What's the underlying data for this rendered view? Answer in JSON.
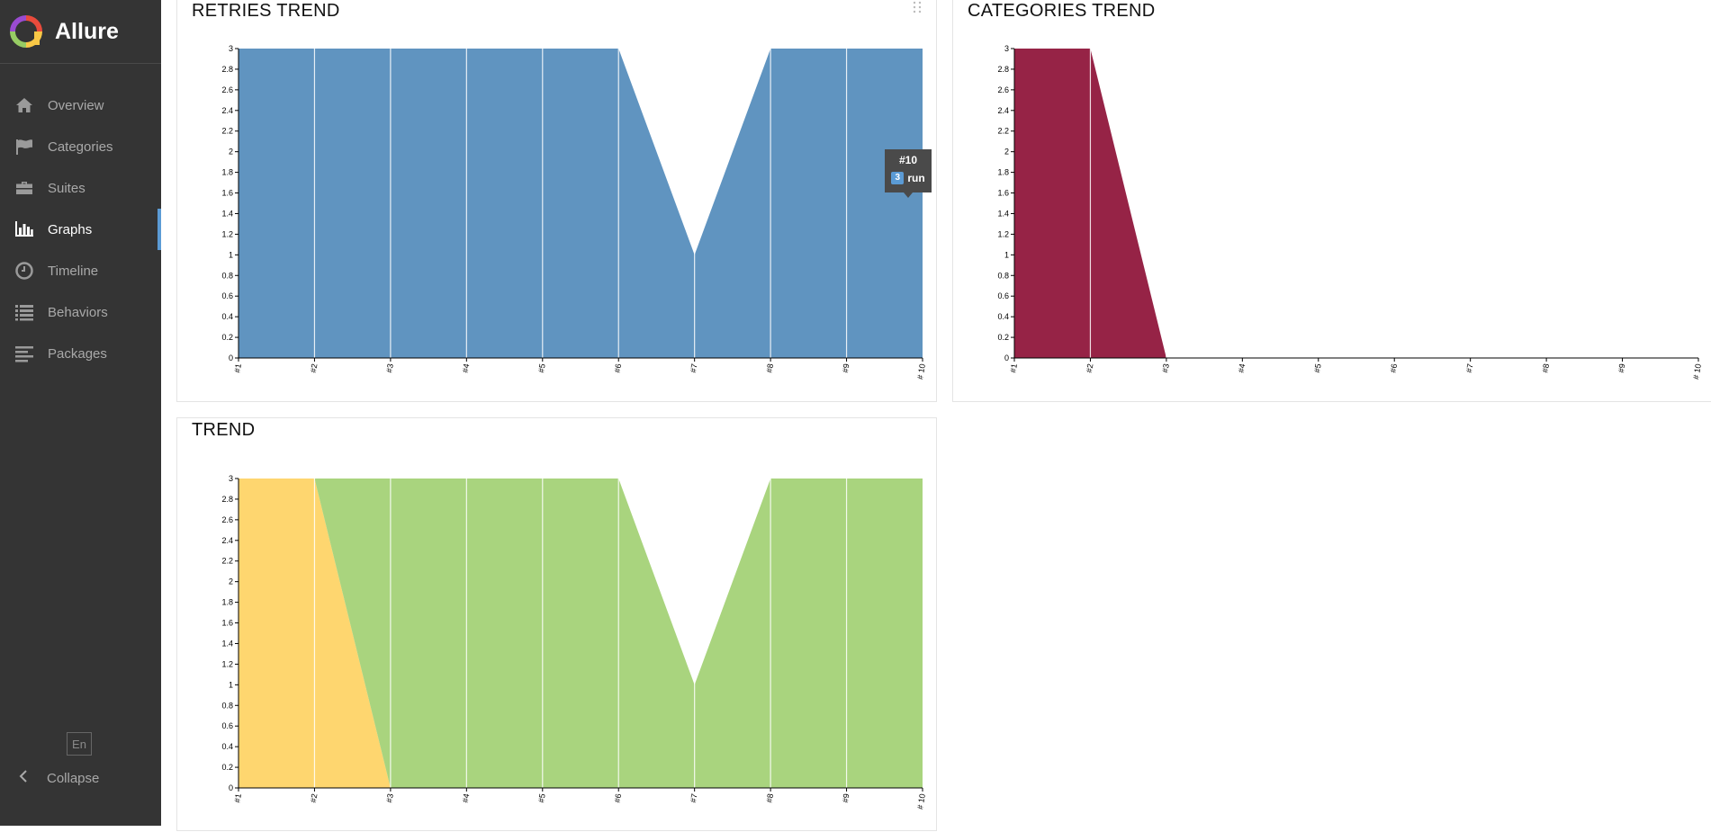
{
  "app": {
    "name": "Allure"
  },
  "sidebar": {
    "items": [
      {
        "label": "Overview",
        "icon": "home-icon",
        "active": false
      },
      {
        "label": "Categories",
        "icon": "flag-icon",
        "active": false
      },
      {
        "label": "Suites",
        "icon": "briefcase-icon",
        "active": false
      },
      {
        "label": "Graphs",
        "icon": "bar-chart-icon",
        "active": true
      },
      {
        "label": "Timeline",
        "icon": "clock-icon",
        "active": false
      },
      {
        "label": "Behaviors",
        "icon": "list-icon",
        "active": false
      },
      {
        "label": "Packages",
        "icon": "align-left-icon",
        "active": false
      }
    ],
    "language": "En",
    "collapse_label": "Collapse"
  },
  "widgets": {
    "retries": {
      "title": "RETRIES TREND"
    },
    "categories": {
      "title": "CATEGORIES TREND"
    },
    "trend": {
      "title": "TREND"
    }
  },
  "tooltip": {
    "title": "#10",
    "count": "3",
    "label": "run"
  },
  "colors": {
    "sidebar_bg": "#343434",
    "accent": "#5b9bd5",
    "retries": "#6094c0",
    "categories": "#962346",
    "broken": "#fed66f",
    "passed": "#a9d47e"
  },
  "chart_data": [
    {
      "id": "retries",
      "type": "area",
      "title": "RETRIES TREND",
      "x": [
        "#1",
        "#2",
        "#3",
        "#4",
        "#5",
        "#6",
        "#7",
        "#8",
        "#9",
        "# 10"
      ],
      "yticks": [
        "0",
        "0.2",
        "0.4",
        "0.6",
        "0.8",
        "1",
        "1.2",
        "1.4",
        "1.6",
        "1.8",
        "2",
        "2.2",
        "2.4",
        "2.6",
        "2.8",
        "3"
      ],
      "ylim": [
        0,
        3
      ],
      "series": [
        {
          "name": "run",
          "color": "#6094c0",
          "values": [
            3,
            3,
            3,
            3,
            3,
            3,
            1,
            3,
            3,
            3
          ]
        }
      ]
    },
    {
      "id": "categories",
      "type": "area",
      "title": "CATEGORIES TREND",
      "x": [
        "#1",
        "#2",
        "#3",
        "#4",
        "#5",
        "#6",
        "#7",
        "#8",
        "#9",
        "# 10"
      ],
      "yticks": [
        "0",
        "0.2",
        "0.4",
        "0.6",
        "0.8",
        "1",
        "1.2",
        "1.4",
        "1.6",
        "1.8",
        "2",
        "2.2",
        "2.4",
        "2.6",
        "2.8",
        "3"
      ],
      "ylim": [
        0,
        3
      ],
      "series": [
        {
          "color": "#962346",
          "values": [
            3,
            3,
            0,
            0,
            0,
            0,
            0,
            0,
            0,
            0
          ]
        }
      ]
    },
    {
      "id": "trend",
      "type": "area",
      "title": "TREND",
      "x": [
        "#1",
        "#2",
        "#3",
        "#4",
        "#5",
        "#6",
        "#7",
        "#8",
        "#9",
        "# 10"
      ],
      "yticks": [
        "0",
        "0.2",
        "0.4",
        "0.6",
        "0.8",
        "1",
        "1.2",
        "1.4",
        "1.6",
        "1.8",
        "2",
        "2.2",
        "2.4",
        "2.6",
        "2.8",
        "3"
      ],
      "ylim": [
        0,
        3
      ],
      "stacked": true,
      "series": [
        {
          "color": "#fed66f",
          "values": [
            3,
            3,
            0,
            0,
            0,
            0,
            0,
            0,
            0,
            0
          ]
        },
        {
          "color": "#a9d47e",
          "values": [
            0,
            0,
            3,
            3,
            3,
            3,
            1,
            3,
            3,
            3
          ]
        }
      ]
    }
  ]
}
